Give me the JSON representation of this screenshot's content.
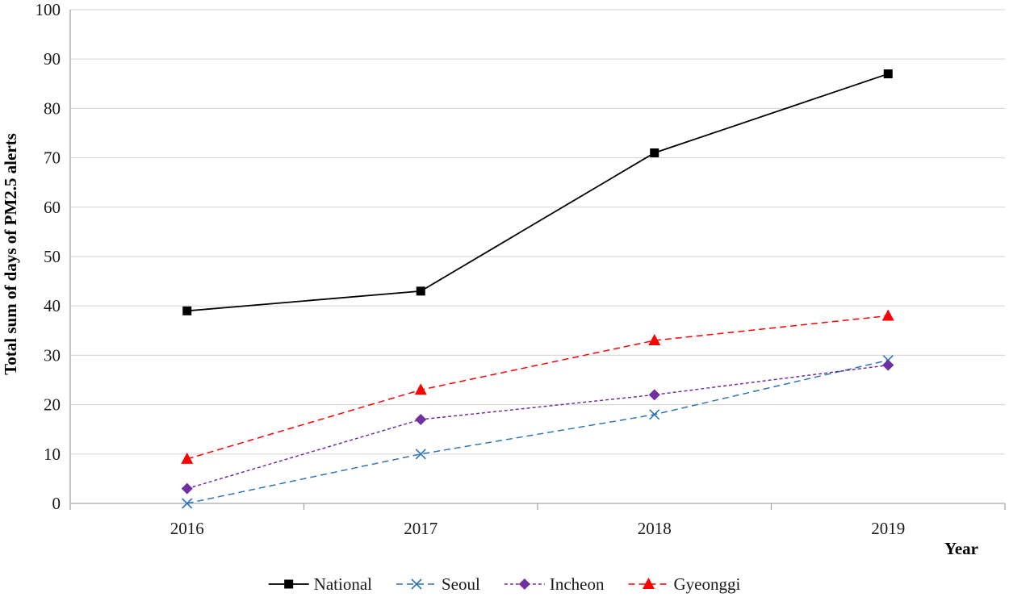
{
  "chart_data": {
    "type": "line",
    "title": "",
    "xlabel": "Year",
    "ylabel": "Total sum of days of PM2.5 alerts",
    "categories": [
      "2016",
      "2017",
      "2018",
      "2019"
    ],
    "ylim": [
      0,
      100
    ],
    "yticks": [
      0,
      10,
      20,
      30,
      40,
      50,
      60,
      70,
      80,
      90,
      100
    ],
    "grid": "horizontal",
    "legend_position": "bottom",
    "series": [
      {
        "name": "National",
        "values": [
          39,
          43,
          71,
          87
        ],
        "color": "#000000",
        "dash": "solid",
        "marker": "square"
      },
      {
        "name": "Seoul",
        "values": [
          0,
          10,
          18,
          29
        ],
        "color": "#2e75b6",
        "dash": "dashed",
        "marker": "x"
      },
      {
        "name": "Incheon",
        "values": [
          3,
          17,
          22,
          28
        ],
        "color": "#7030a0",
        "dash": "short-dash",
        "marker": "diamond"
      },
      {
        "name": "Gyeonggi",
        "values": [
          9,
          23,
          33,
          38
        ],
        "color": "#ff0000",
        "dash": "dashed",
        "marker": "triangle"
      }
    ]
  }
}
